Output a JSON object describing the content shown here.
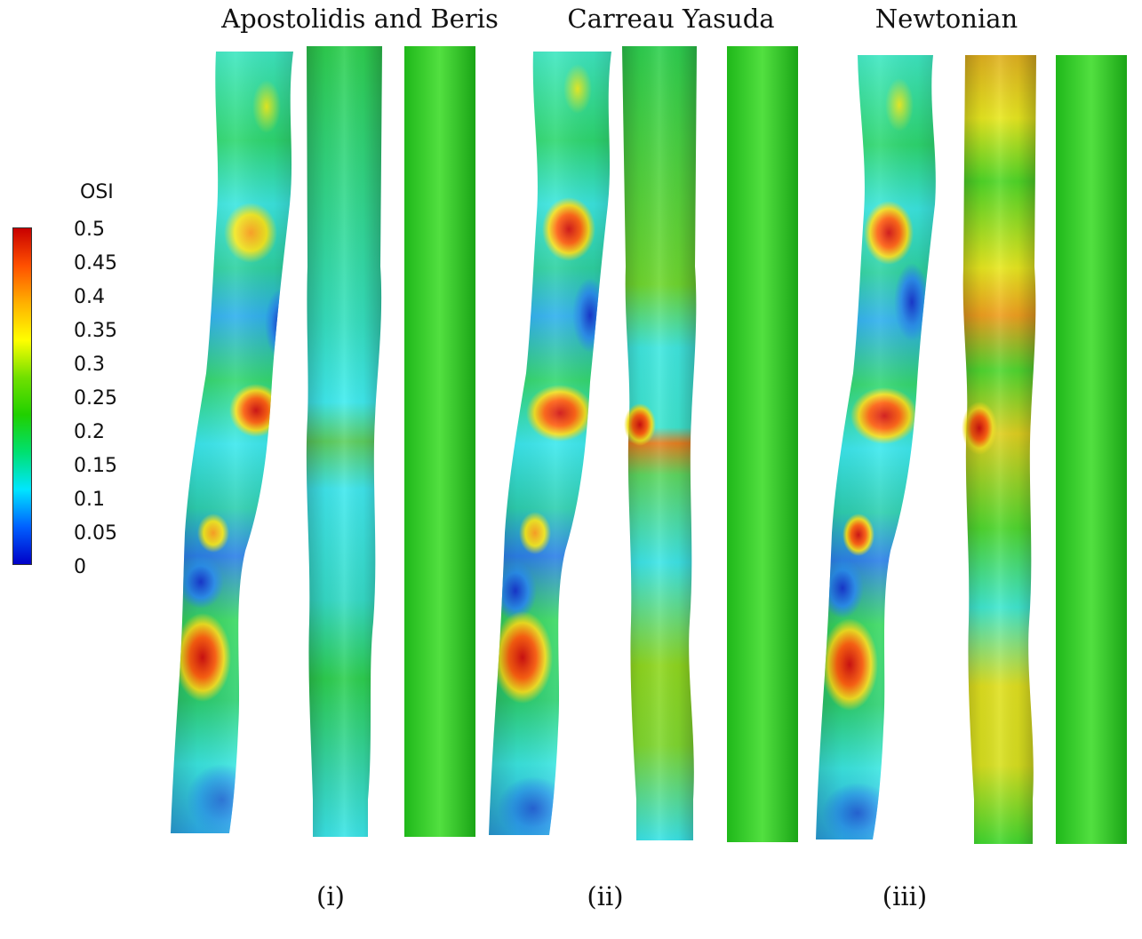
{
  "groups": [
    {
      "title": "Apostolidis and Beris",
      "label": "(i)"
    },
    {
      "title": "Carreau Yasuda",
      "label": "(ii)"
    },
    {
      "title": "Newtonian",
      "label": "(iii)"
    }
  ],
  "colorbar": {
    "title": "OSI",
    "ticks": [
      "0.5",
      "0.45",
      "0.4",
      "0.35",
      "0.3",
      "0.25",
      "0.2",
      "0.15",
      "0.1",
      "0.05",
      "0"
    ],
    "min": 0,
    "max": 0.5,
    "colors": [
      "#0000c8",
      "#0060ff",
      "#00e6ff",
      "#00e070",
      "#20d000",
      "#70e000",
      "#ffff00",
      "#ffb000",
      "#ff5000",
      "#c80000"
    ]
  },
  "colors": {
    "low": "#1a3fd6",
    "cyan": "#2ee6f0",
    "green": "#2ad11a",
    "yellow": "#e8ea20",
    "orange": "#ff8a10",
    "red": "#d81a10"
  }
}
